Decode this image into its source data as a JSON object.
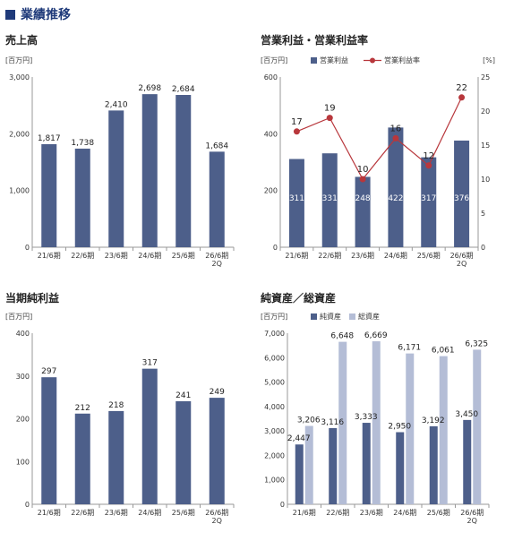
{
  "header": {
    "title": "業績推移"
  },
  "colors": {
    "bar": "#4d5f8a",
    "bar_light": "#b4bdd6",
    "line": "#b8373c",
    "header": "#1f3a7a"
  },
  "chart_data": [
    {
      "id": "sales",
      "type": "bar",
      "title": "売上高",
      "unit_label": "[百万円]",
      "categories": [
        "21/6期",
        "22/6期",
        "23/6期",
        "24/6期",
        "25/6期",
        "26/6期\n2Q"
      ],
      "values": [
        1817,
        1738,
        2410,
        2698,
        2684,
        1684
      ],
      "value_labels": [
        "1,817",
        "1,738",
        "2,410",
        "2,698",
        "2,684",
        "1,684"
      ],
      "ylim": [
        0,
        3000
      ],
      "yticks": [
        "0",
        "1,000",
        "2,000",
        "3,000"
      ]
    },
    {
      "id": "operating",
      "type": "bar+line",
      "title": "営業利益・営業利益率",
      "unit_label": "[百万円]",
      "right_unit_label": "[%]",
      "legend": [
        "営業利益",
        "営業利益率"
      ],
      "categories": [
        "21/6期",
        "22/6期",
        "23/6期",
        "24/6期",
        "25/6期",
        "26/6期\n2Q"
      ],
      "series": [
        {
          "name": "営業利益",
          "values": [
            311,
            331,
            248,
            422,
            317,
            376
          ],
          "labels": [
            "311",
            "331",
            "248",
            "422",
            "317",
            "376"
          ]
        },
        {
          "name": "営業利益率",
          "values": [
            17,
            19,
            10,
            16,
            12,
            22
          ],
          "labels": [
            "17",
            "19",
            "10",
            "16",
            "12",
            "22"
          ]
        }
      ],
      "ylim": [
        0,
        600
      ],
      "yticks": [
        "0",
        "200",
        "400",
        "600"
      ],
      "ylim_right": [
        0,
        25
      ],
      "yticks_right": [
        "0",
        "5",
        "10",
        "15",
        "20",
        "25"
      ]
    },
    {
      "id": "netincome",
      "type": "bar",
      "title": "当期純利益",
      "unit_label": "[百万円]",
      "categories": [
        "21/6期",
        "22/6期",
        "23/6期",
        "24/6期",
        "25/6期",
        "26/6期\n2Q"
      ],
      "values": [
        297,
        212,
        218,
        317,
        241,
        249
      ],
      "value_labels": [
        "297",
        "212",
        "218",
        "317",
        "241",
        "249"
      ],
      "ylim": [
        0,
        400
      ],
      "yticks": [
        "0",
        "100",
        "200",
        "300",
        "400"
      ]
    },
    {
      "id": "assets",
      "type": "grouped-bar",
      "title": "純資産／総資産",
      "unit_label": "[百万円]",
      "legend": [
        "純資産",
        "総資産"
      ],
      "categories": [
        "21/6期",
        "22/6期",
        "23/6期",
        "24/6期",
        "25/6期",
        "26/6期\n2Q"
      ],
      "series": [
        {
          "name": "純資産",
          "values": [
            2447,
            3116,
            3333,
            2950,
            3192,
            3450
          ],
          "labels": [
            "2,447",
            "3,116",
            "3,333",
            "2,950",
            "3,192",
            "3,450"
          ]
        },
        {
          "name": "総資産",
          "values": [
            3206,
            6648,
            6669,
            6171,
            6061,
            6325
          ],
          "labels": [
            "3,206",
            "6,648",
            "6,669",
            "6,171",
            "6,061",
            "6,325"
          ]
        }
      ],
      "ylim": [
        0,
        7000
      ],
      "yticks": [
        "0",
        "1,000",
        "2,000",
        "3,000",
        "4,000",
        "5,000",
        "6,000",
        "7,000"
      ]
    }
  ]
}
